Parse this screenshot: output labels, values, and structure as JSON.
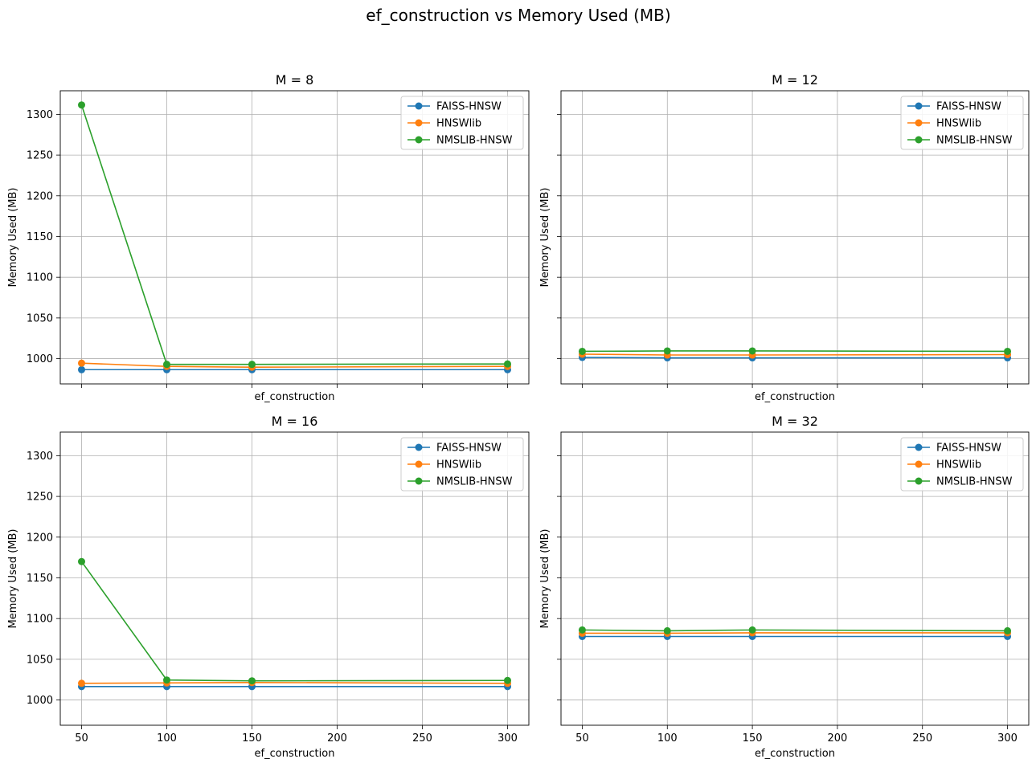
{
  "figure": {
    "title": "ef_construction vs Memory Used (MB)"
  },
  "chart_data": [
    {
      "type": "line",
      "title": "M = 8",
      "xlabel": "ef_construction",
      "ylabel": "Memory Used (MB)",
      "xlim": [
        37.5,
        312.5
      ],
      "ylim": [
        969,
        1329
      ],
      "xticks": [
        50,
        100,
        150,
        200,
        250,
        300
      ],
      "yticks": [
        1000,
        1050,
        1100,
        1150,
        1200,
        1250,
        1300
      ],
      "show_x_tick_labels": false,
      "show_y_tick_labels": true,
      "grid": true,
      "legend_position": "top-right",
      "x": [
        50,
        100,
        150,
        300
      ],
      "series": [
        {
          "name": "FAISS-HNSW",
          "color": "#1f77b4",
          "values": [
            986.5,
            986.5,
            986.5,
            986.5
          ]
        },
        {
          "name": "HNSWlib",
          "color": "#ff7f0e",
          "values": [
            994.5,
            990.5,
            989.5,
            990.5
          ]
        },
        {
          "name": "NMSLIB-HNSW",
          "color": "#2ca02c",
          "values": [
            1311.5,
            993.0,
            993.0,
            993.5
          ]
        }
      ]
    },
    {
      "type": "line",
      "title": "M = 12",
      "xlabel": "ef_construction",
      "ylabel": "Memory Used (MB)",
      "xlim": [
        37.5,
        312.5
      ],
      "ylim": [
        969,
        1329
      ],
      "xticks": [
        50,
        100,
        150,
        200,
        250,
        300
      ],
      "yticks": [
        1000,
        1050,
        1100,
        1150,
        1200,
        1250,
        1300
      ],
      "show_x_tick_labels": false,
      "show_y_tick_labels": false,
      "grid": true,
      "legend_position": "top-right",
      "x": [
        50,
        100,
        150,
        300
      ],
      "series": [
        {
          "name": "FAISS-HNSW",
          "color": "#1f77b4",
          "values": [
            1001.5,
            1001.0,
            1001.0,
            1001.0
          ]
        },
        {
          "name": "HNSWlib",
          "color": "#ff7f0e",
          "values": [
            1005.5,
            1004.5,
            1004.5,
            1005.0
          ]
        },
        {
          "name": "NMSLIB-HNSW",
          "color": "#2ca02c",
          "values": [
            1009.0,
            1009.5,
            1009.5,
            1009.0
          ]
        }
      ]
    },
    {
      "type": "line",
      "title": "M = 16",
      "xlabel": "ef_construction",
      "ylabel": "Memory Used (MB)",
      "xlim": [
        37.5,
        312.5
      ],
      "ylim": [
        969,
        1329
      ],
      "xticks": [
        50,
        100,
        150,
        200,
        250,
        300
      ],
      "yticks": [
        1000,
        1050,
        1100,
        1150,
        1200,
        1250,
        1300
      ],
      "show_x_tick_labels": true,
      "show_y_tick_labels": true,
      "grid": true,
      "legend_position": "top-right",
      "x": [
        50,
        100,
        150,
        300
      ],
      "series": [
        {
          "name": "FAISS-HNSW",
          "color": "#1f77b4",
          "values": [
            1016.5,
            1016.5,
            1016.5,
            1016.5
          ]
        },
        {
          "name": "HNSWlib",
          "color": "#ff7f0e",
          "values": [
            1020.5,
            1021.0,
            1021.5,
            1020.5
          ]
        },
        {
          "name": "NMSLIB-HNSW",
          "color": "#2ca02c",
          "values": [
            1170.0,
            1024.5,
            1023.5,
            1024.0
          ]
        }
      ]
    },
    {
      "type": "line",
      "title": "M = 32",
      "xlabel": "ef_construction",
      "ylabel": "Memory Used (MB)",
      "xlim": [
        37.5,
        312.5
      ],
      "ylim": [
        969,
        1329
      ],
      "xticks": [
        50,
        100,
        150,
        200,
        250,
        300
      ],
      "yticks": [
        1000,
        1050,
        1100,
        1150,
        1200,
        1250,
        1300
      ],
      "show_x_tick_labels": true,
      "show_y_tick_labels": false,
      "grid": true,
      "legend_position": "top-right",
      "x": [
        50,
        100,
        150,
        300
      ],
      "series": [
        {
          "name": "FAISS-HNSW",
          "color": "#1f77b4",
          "values": [
            1078.0,
            1078.0,
            1078.0,
            1078.0
          ]
        },
        {
          "name": "HNSWlib",
          "color": "#ff7f0e",
          "values": [
            1082.0,
            1082.0,
            1082.5,
            1082.5
          ]
        },
        {
          "name": "NMSLIB-HNSW",
          "color": "#2ca02c",
          "values": [
            1086.0,
            1085.0,
            1086.0,
            1085.0
          ]
        }
      ]
    }
  ]
}
